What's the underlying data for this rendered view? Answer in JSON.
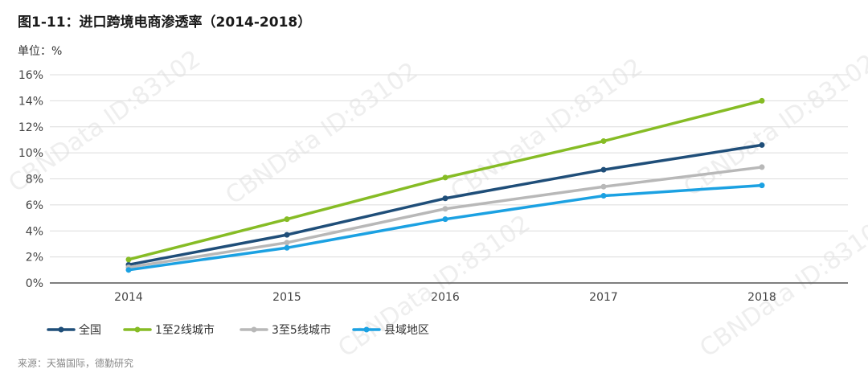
{
  "title": "图1-11：进口跨境电商渗透率（2014-2018）",
  "unit_label": "单位：%",
  "source": "来源：天猫国际，德勤研究",
  "watermark": "CBNData ID:83102",
  "chart_data": {
    "type": "line",
    "categories": [
      "2014",
      "2015",
      "2016",
      "2017",
      "2018"
    ],
    "ylim": [
      0,
      16
    ],
    "y_ticks": [
      "0%",
      "2%",
      "4%",
      "6%",
      "8%",
      "10%",
      "12%",
      "14%",
      "16%"
    ],
    "grid": true,
    "legend_position": "bottom-left",
    "series": [
      {
        "name": "全国",
        "color": "#1f4e79",
        "values": [
          1.4,
          3.7,
          6.5,
          8.7,
          10.6
        ]
      },
      {
        "name": "1至2线城市",
        "color": "#86bc25",
        "values": [
          1.8,
          4.9,
          8.1,
          10.9,
          14.0
        ]
      },
      {
        "name": "3至5线城市",
        "color": "#b8b8b8",
        "values": [
          1.2,
          3.1,
          5.7,
          7.4,
          8.9
        ]
      },
      {
        "name": "县域地区",
        "color": "#1ba1e2",
        "values": [
          1.0,
          2.7,
          4.9,
          6.7,
          7.5
        ]
      }
    ]
  }
}
